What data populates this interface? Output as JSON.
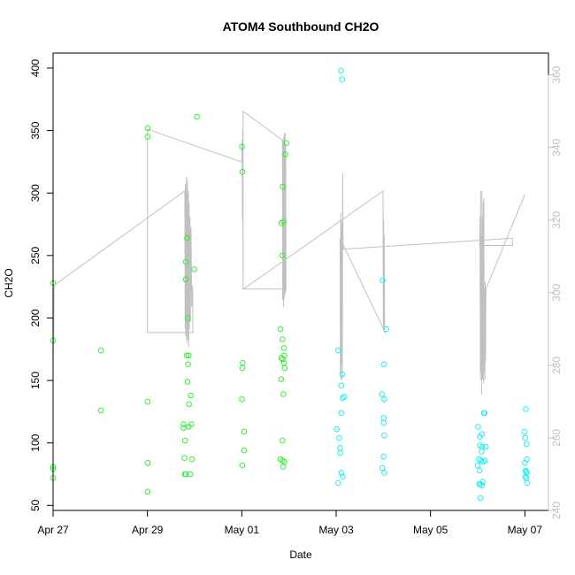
{
  "chart_data": {
    "type": "scatter",
    "title": "ATOM4 Southbound CH2O",
    "xlabel": "Date",
    "ylabel": "CH2O",
    "xlim": [
      "2018-04-27T00:00",
      "2018-05-07T12:00"
    ],
    "ylim": [
      46,
      412
    ],
    "y2lim": [
      240,
      366
    ],
    "x_ticks": [
      {
        "date": "2018-04-27",
        "label": "Apr 27"
      },
      {
        "date": "2018-04-29",
        "label": "Apr 29"
      },
      {
        "date": "2018-05-01",
        "label": "May 01"
      },
      {
        "date": "2018-05-03",
        "label": "May 03"
      },
      {
        "date": "2018-05-05",
        "label": "May 05"
      },
      {
        "date": "2018-05-07",
        "label": "May 07"
      }
    ],
    "y_ticks": [
      50,
      100,
      150,
      200,
      250,
      300,
      350,
      400
    ],
    "y2_ticks": [
      240,
      260,
      280,
      300,
      320,
      340,
      360
    ],
    "grid": false,
    "legend": "none",
    "colors": {
      "early_points": "#33ee33",
      "late_points": "#22eeee",
      "secondary_line": "#c0c0c0",
      "axis": "#000000",
      "secondary_axis": "#c0c0c0"
    },
    "series": [
      {
        "color": "#33ee33",
        "points": [
          [
            "2018-04-27T00:00",
            228
          ],
          [
            "2018-04-27T00:00",
            182
          ],
          [
            "2018-04-27T00:00",
            81
          ],
          [
            "2018-04-27T00:00",
            79
          ],
          [
            "2018-04-27T00:05",
            72
          ],
          [
            "2018-04-28T00:20",
            174
          ],
          [
            "2018-04-28T00:20",
            126
          ],
          [
            "2018-04-29T00:05",
            352
          ],
          [
            "2018-04-29T00:05",
            345
          ],
          [
            "2018-04-29T00:05",
            133
          ],
          [
            "2018-04-29T00:05",
            84
          ],
          [
            "2018-04-29T00:05",
            61
          ],
          [
            "2018-04-29T19:30",
            245
          ],
          [
            "2018-04-29T19:30",
            231
          ],
          [
            "2018-04-29T18:20",
            115
          ],
          [
            "2018-04-29T18:20",
            112
          ],
          [
            "2018-04-29T19:10",
            102
          ],
          [
            "2018-04-29T18:50",
            88
          ],
          [
            "2018-04-29T19:00",
            75
          ],
          [
            "2018-04-29T19:30",
            75
          ],
          [
            "2018-04-29T20:10",
            264
          ],
          [
            "2018-04-29T20:30",
            200
          ],
          [
            "2018-04-29T20:00",
            170
          ],
          [
            "2018-04-29T21:00",
            170
          ],
          [
            "2018-04-29T20:40",
            163
          ],
          [
            "2018-04-29T20:20",
            149
          ],
          [
            "2018-04-29T22:00",
            138
          ],
          [
            "2018-04-29T21:10",
            131
          ],
          [
            "2018-04-29T22:20",
            115
          ],
          [
            "2018-04-29T21:00",
            113
          ],
          [
            "2018-04-29T22:40",
            87
          ],
          [
            "2018-04-29T21:50",
            75
          ],
          [
            "2018-04-29T23:50",
            239
          ],
          [
            "2018-04-30T01:10",
            361
          ],
          [
            "2018-05-01T00:05",
            337
          ],
          [
            "2018-05-01T00:20",
            317
          ],
          [
            "2018-05-01T00:30",
            164
          ],
          [
            "2018-05-01T00:15",
            160
          ],
          [
            "2018-05-01T00:05",
            135
          ],
          [
            "2018-05-01T01:10",
            109
          ],
          [
            "2018-05-01T01:10",
            94
          ],
          [
            "2018-05-01T00:15",
            82
          ],
          [
            "2018-05-01T20:50",
            305
          ],
          [
            "2018-05-01T20:10",
            276
          ],
          [
            "2018-05-01T21:20",
            277
          ],
          [
            "2018-05-01T20:40",
            250
          ],
          [
            "2018-05-01T19:40",
            191
          ],
          [
            "2018-05-01T20:40",
            183
          ],
          [
            "2018-05-01T21:30",
            176
          ],
          [
            "2018-05-01T21:40",
            170
          ],
          [
            "2018-05-01T20:10",
            168
          ],
          [
            "2018-05-01T20:50",
            167
          ],
          [
            "2018-05-01T21:30",
            164
          ],
          [
            "2018-05-01T21:50",
            160
          ],
          [
            "2018-05-01T20:00",
            151
          ],
          [
            "2018-05-01T21:10",
            139
          ],
          [
            "2018-05-01T20:40",
            102
          ],
          [
            "2018-05-01T19:40",
            87
          ],
          [
            "2018-05-01T20:40",
            86
          ],
          [
            "2018-05-01T21:40",
            85
          ],
          [
            "2018-05-01T21:00",
            81
          ],
          [
            "2018-05-01T22:40",
            340
          ],
          [
            "2018-05-01T22:10",
            331
          ]
        ]
      },
      {
        "color": "#22eeee",
        "points": [
          [
            "2018-05-03T02:30",
            398
          ],
          [
            "2018-05-03T03:00",
            391
          ],
          [
            "2018-05-03T01:00",
            174
          ],
          [
            "2018-05-03T03:00",
            155
          ],
          [
            "2018-05-03T02:40",
            146
          ],
          [
            "2018-05-03T04:10",
            137
          ],
          [
            "2018-05-03T03:20",
            136
          ],
          [
            "2018-05-03T02:40",
            124
          ],
          [
            "2018-05-03T00:20",
            111
          ],
          [
            "2018-05-03T01:30",
            104
          ],
          [
            "2018-05-03T02:00",
            96
          ],
          [
            "2018-05-03T02:10",
            92
          ],
          [
            "2018-05-03T02:40",
            76
          ],
          [
            "2018-05-03T03:20",
            73
          ],
          [
            "2018-05-03T01:00",
            68
          ],
          [
            "2018-05-03T23:40",
            230
          ],
          [
            "2018-05-04T01:30",
            191
          ],
          [
            "2018-05-04T00:20",
            163
          ],
          [
            "2018-05-03T23:20",
            139
          ],
          [
            "2018-05-04T00:30",
            135
          ],
          [
            "2018-05-04T00:10",
            120
          ],
          [
            "2018-05-04T00:10",
            116
          ],
          [
            "2018-05-04T00:30",
            106
          ],
          [
            "2018-05-04T00:10",
            89
          ],
          [
            "2018-05-03T23:30",
            80
          ],
          [
            "2018-05-04T00:30",
            76
          ],
          [
            "2018-05-06T00:10",
            113
          ],
          [
            "2018-05-06T01:10",
            105
          ],
          [
            "2018-05-06T02:10",
            107
          ],
          [
            "2018-05-06T03:10",
            124
          ],
          [
            "2018-05-06T03:30",
            124
          ],
          [
            "2018-05-06T01:10",
            98
          ],
          [
            "2018-05-06T02:20",
            97
          ],
          [
            "2018-05-06T04:10",
            97
          ],
          [
            "2018-05-06T02:00",
            93
          ],
          [
            "2018-05-06T00:40",
            87
          ],
          [
            "2018-05-06T01:40",
            86
          ],
          [
            "2018-05-06T02:50",
            85
          ],
          [
            "2018-05-06T03:40",
            86
          ],
          [
            "2018-05-06T00:00",
            82
          ],
          [
            "2018-05-06T01:00",
            78
          ],
          [
            "2018-05-06T02:30",
            69
          ],
          [
            "2018-05-06T00:50",
            67
          ],
          [
            "2018-05-06T01:20",
            67
          ],
          [
            "2018-05-06T02:10",
            66
          ],
          [
            "2018-05-06T01:30",
            56
          ],
          [
            "2018-05-06T23:50",
            109
          ],
          [
            "2018-05-07T00:10",
            104
          ],
          [
            "2018-05-07T00:30",
            127
          ],
          [
            "2018-05-07T00:50",
            99
          ],
          [
            "2018-05-07T01:00",
            87
          ],
          [
            "2018-05-07T00:00",
            84
          ],
          [
            "2018-05-07T00:20",
            78
          ],
          [
            "2018-05-07T00:40",
            77
          ],
          [
            "2018-05-07T01:00",
            76
          ],
          [
            "2018-05-07T00:10",
            73
          ],
          [
            "2018-05-07T00:40",
            72
          ],
          [
            "2018-05-07T01:10",
            68
          ]
        ]
      },
      {
        "type": "line",
        "axis": "right",
        "color": "#c0c0c0",
        "points": [
          [
            "2018-04-27T00:00",
            280
          ],
          [
            "2018-04-27T00:10",
            290
          ],
          [
            "2018-04-27T00:20",
            286
          ],
          [
            "2018-04-27T00:30",
            302
          ],
          [
            "2018-04-29T19:00",
            328
          ],
          [
            "2018-04-29T19:10",
            290
          ],
          [
            "2018-04-29T19:20",
            330
          ],
          [
            "2018-04-29T19:30",
            288
          ],
          [
            "2018-04-29T19:50",
            332
          ],
          [
            "2018-04-29T20:00",
            286
          ],
          [
            "2018-04-29T20:20",
            331
          ],
          [
            "2018-04-29T20:30",
            287
          ],
          [
            "2018-04-29T20:50",
            328
          ],
          [
            "2018-04-29T21:00",
            285
          ],
          [
            "2018-04-29T21:10",
            325
          ],
          [
            "2018-04-29T21:20",
            290
          ],
          [
            "2018-04-29T21:40",
            321
          ],
          [
            "2018-04-29T21:50",
            292
          ],
          [
            "2018-04-29T22:10",
            318
          ],
          [
            "2018-04-29T22:30",
            296
          ],
          [
            "2018-04-29T23:00",
            302
          ],
          [
            "2018-04-29T23:10",
            289
          ],
          [
            "2018-04-29T23:20",
            289
          ],
          [
            "2018-04-29T00:30",
            289
          ],
          [
            "2018-04-29T00:00",
            289
          ],
          [
            "2018-04-29T00:00",
            343
          ],
          [
            "2018-04-29T00:10",
            345
          ],
          [
            "2018-05-01T00:00",
            336
          ],
          [
            "2018-05-01T00:10",
            342
          ],
          [
            "2018-05-01T00:20",
            320
          ],
          [
            "2018-05-01T00:30",
            345
          ],
          [
            "2018-05-01T00:40",
            301
          ],
          [
            "2018-05-01T00:40",
            350
          ],
          [
            "2018-05-01T20:40",
            342
          ],
          [
            "2018-05-01T20:50",
            298
          ],
          [
            "2018-05-01T21:00",
            342
          ],
          [
            "2018-05-01T21:10",
            296
          ],
          [
            "2018-05-01T21:20",
            343
          ],
          [
            "2018-05-01T21:30",
            298
          ],
          [
            "2018-05-01T21:40",
            344
          ],
          [
            "2018-05-01T21:50",
            299
          ],
          [
            "2018-05-01T22:00",
            344
          ],
          [
            "2018-05-01T22:10",
            300
          ],
          [
            "2018-05-01T22:20",
            341
          ],
          [
            "2018-05-01T22:30",
            301
          ],
          [
            "2018-05-01T22:30",
            301
          ],
          [
            "2018-05-01T01:00",
            301
          ],
          [
            "2018-05-01T00:50",
            301
          ],
          [
            "2018-05-03T23:50",
            328
          ],
          [
            "2018-05-04T00:00",
            290
          ],
          [
            "2018-05-04T00:10",
            320
          ],
          [
            "2018-05-04T00:20",
            291
          ],
          [
            "2018-05-04T00:30",
            316
          ],
          [
            "2018-05-04T00:40",
            289
          ],
          [
            "2018-05-04T01:00",
            289
          ],
          [
            "2018-05-03T02:00",
            315
          ],
          [
            "2018-05-03T02:10",
            278
          ],
          [
            "2018-05-03T02:20",
            322
          ],
          [
            "2018-05-03T02:30",
            276
          ],
          [
            "2018-05-03T02:40",
            320
          ],
          [
            "2018-05-03T02:50",
            280
          ],
          [
            "2018-05-03T03:00",
            319
          ],
          [
            "2018-05-03T03:10",
            276
          ],
          [
            "2018-05-03T03:20",
            333
          ],
          [
            "2018-05-03T03:30",
            312
          ],
          [
            "2018-05-06T17:40",
            315
          ],
          [
            "2018-05-06T17:40",
            313
          ],
          [
            "2018-05-06T01:00",
            313
          ],
          [
            "2018-05-06T01:10",
            321
          ],
          [
            "2018-05-06T01:20",
            276
          ],
          [
            "2018-05-06T01:30",
            328
          ],
          [
            "2018-05-06T01:40",
            278
          ],
          [
            "2018-05-06T01:50",
            316
          ],
          [
            "2018-05-06T02:00",
            272
          ],
          [
            "2018-05-06T02:10",
            328
          ],
          [
            "2018-05-06T02:20",
            276
          ],
          [
            "2018-05-06T02:30",
            321
          ],
          [
            "2018-05-06T02:40",
            276
          ],
          [
            "2018-05-06T02:50",
            325
          ],
          [
            "2018-05-06T03:00",
            275
          ],
          [
            "2018-05-06T03:10",
            326
          ],
          [
            "2018-05-06T03:20",
            278
          ],
          [
            "2018-05-06T03:30",
            301
          ],
          [
            "2018-05-06T03:40",
            276
          ],
          [
            "2018-05-06T03:50",
            303
          ],
          [
            "2018-05-06T04:00",
            281
          ],
          [
            "2018-05-06T04:10",
            301
          ],
          [
            "2018-05-07T00:00",
            327
          ]
        ]
      }
    ]
  }
}
